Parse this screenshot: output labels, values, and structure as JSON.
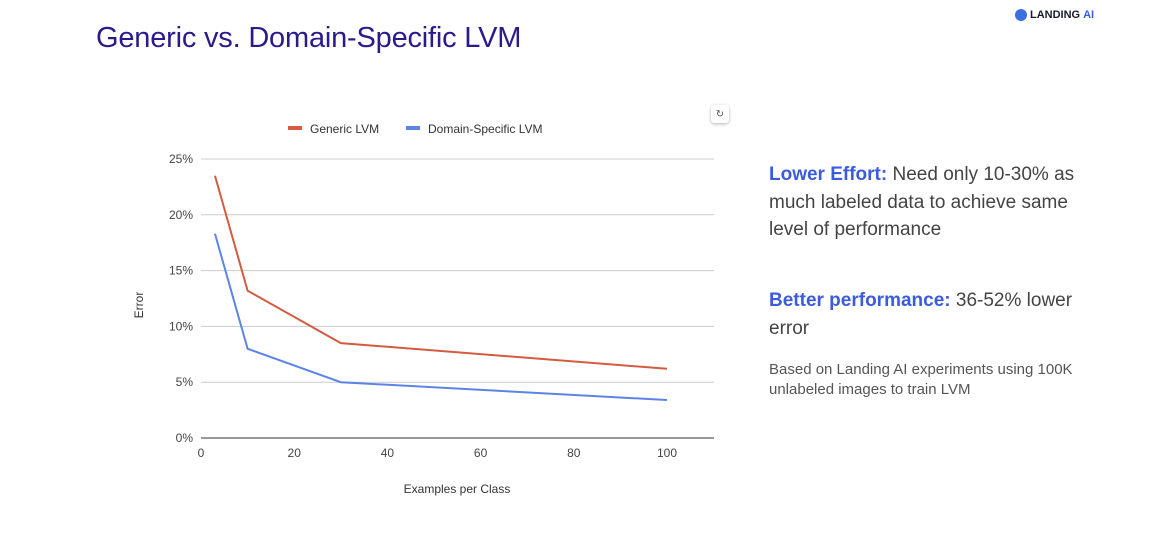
{
  "slide": {
    "title": "Generic vs. Domain-Specific LVM",
    "logo": {
      "text": "LANDING",
      "accent": "AI"
    },
    "reset_icon": "refresh-icon",
    "points": [
      {
        "highlight": "Lower Effort:",
        "text": " Need only 10-30% as much labeled data to achieve same level of performance"
      },
      {
        "highlight": "Better performance:",
        "text": " 36-52% lower error"
      }
    ],
    "note": "Based on Landing AI experiments using 100K unlabeled images to train LVM",
    "colors": {
      "title": "#2b1a8c",
      "highlight": "#3b5be0"
    }
  },
  "chart_data": {
    "type": "line",
    "title": "",
    "xlabel": "Examples per Class",
    "ylabel": "Error",
    "xlim": [
      0,
      110
    ],
    "ylim": [
      0,
      25
    ],
    "x_ticks": [
      0,
      20,
      40,
      60,
      80,
      100
    ],
    "x_tick_labels": [
      "0",
      "20",
      "40",
      "60",
      "80",
      "100"
    ],
    "y_ticks": [
      0,
      5,
      10,
      15,
      20,
      25
    ],
    "y_tick_labels": [
      "0%",
      "5%",
      "10%",
      "15%",
      "20%",
      "25%"
    ],
    "grid": true,
    "legend": "top",
    "x": [
      3,
      10,
      30,
      100
    ],
    "series": [
      {
        "name": "Generic LVM",
        "color": "#d35b3f",
        "values": [
          23.5,
          13.2,
          8.5,
          6.2
        ]
      },
      {
        "name": "Domain-Specific LVM",
        "color": "#5b84e6",
        "values": [
          18.3,
          8.0,
          5.0,
          3.4
        ]
      }
    ]
  }
}
